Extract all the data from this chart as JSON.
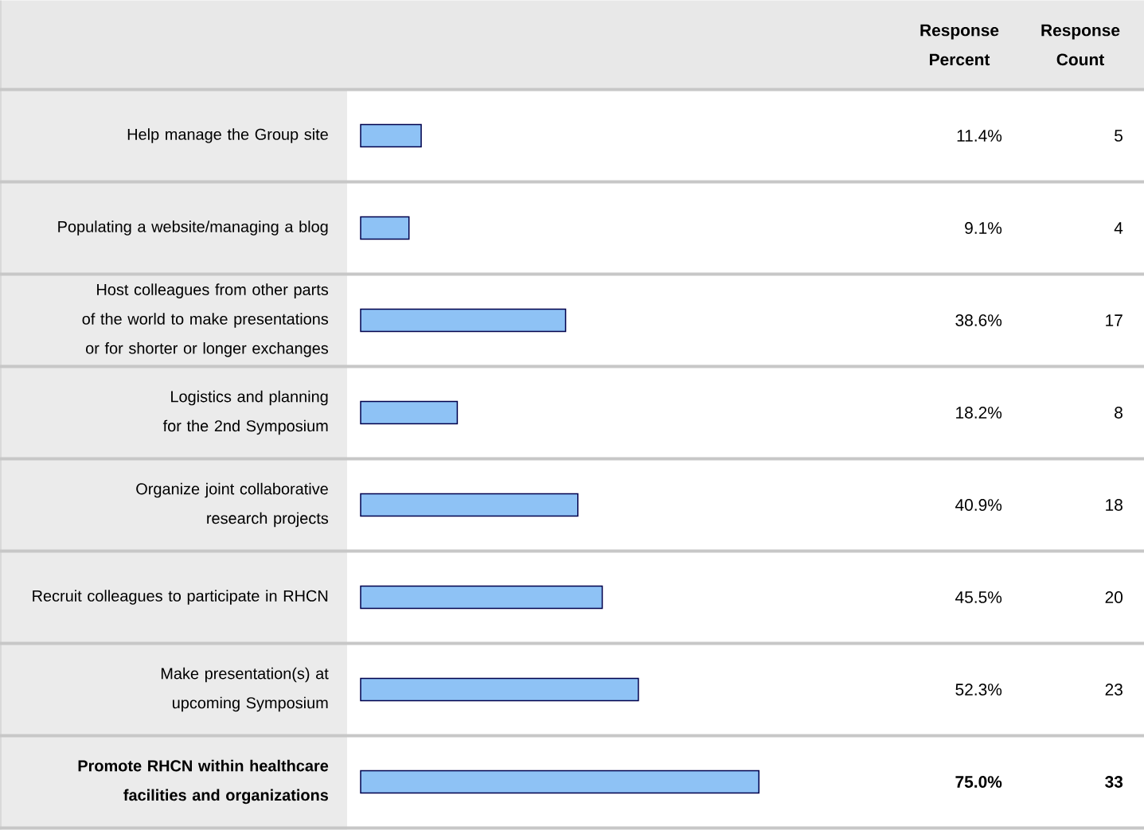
{
  "chart_data": {
    "type": "bar",
    "orientation": "horizontal",
    "categories": [
      "Help manage the Group site",
      "Populating a website/managing a blog",
      "Host colleagues from other parts of the world to make presentations or for shorter or longer exchanges",
      "Logistics and planning for the 2nd Symposium",
      "Organize joint collaborative research projects",
      "Recruit colleagues to participate in RHCN",
      "Make presentation(s) at upcoming Symposium",
      "Promote RHCN within healthcare facilities and organizations"
    ],
    "values": [
      11.4,
      9.1,
      38.6,
      18.2,
      40.9,
      45.5,
      52.3,
      75.0
    ],
    "value_labels": [
      "11.4%",
      "9.1%",
      "38.6%",
      "18.2%",
      "40.9%",
      "45.5%",
      "52.3%",
      "75.0%"
    ],
    "color": "#8ec2f5",
    "annotations": [
      "Response Percent",
      "Response Count",
      "5",
      "4",
      "17",
      "8",
      "18",
      "20",
      "23",
      "33"
    ]
  }
}
